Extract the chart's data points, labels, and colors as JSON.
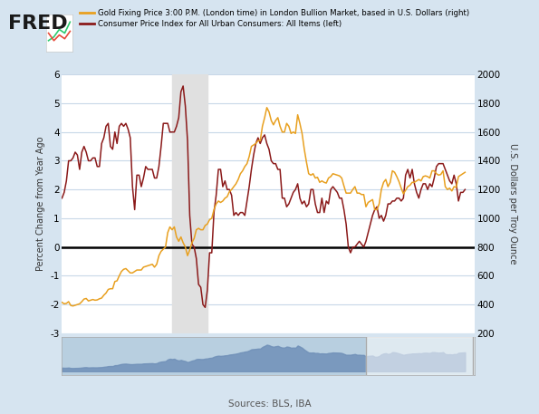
{
  "bg_color": "#d6e4f0",
  "plot_bg_color": "#ffffff",
  "header_bg": "#d6e4f0",
  "title_left": "FRED",
  "legend1": "Gold Fixing Price 3:00 P.M. (London time) in London Bullion Market, based in U.S. Dollars (right)",
  "legend2": "Consumer Price Index for All Urban Consumers: All Items (left)",
  "ylabel_left": "Percent Change from Year Ago",
  "ylabel_right": "U.S. Dollars per Troy Ounce",
  "source": "Sources: BLS, IBA",
  "recession_start": 2008.17,
  "recession_end": 2009.5,
  "ylim_left": [
    -3,
    6
  ],
  "ylim_right": [
    200,
    2000
  ],
  "yticks_left": [
    -3,
    -2,
    -1,
    0,
    1,
    2,
    3,
    4,
    5,
    6
  ],
  "yticks_right": [
    200,
    400,
    600,
    800,
    1000,
    1200,
    1400,
    1600,
    1800,
    2000
  ],
  "xtick_positions": [
    2006,
    2008,
    2010,
    2012,
    2014,
    2016,
    2018
  ],
  "xlim": [
    2004.0,
    2019.6
  ],
  "gold_color": "#e8a020",
  "cpi_color": "#8b1a1a",
  "zero_line_color": "#000000",
  "grid_color": "#c8d8e8",
  "recession_color": "#e0e0e0",
  "mini_fill_color": "#7090b8",
  "mini_bg_color": "#b8cfe0",
  "mini_highlight_start": 2015.5,
  "mini_highlight_end": 2019.6,
  "cpi_data_dates": [
    2004.0,
    2004.083,
    2004.167,
    2004.25,
    2004.333,
    2004.417,
    2004.5,
    2004.583,
    2004.667,
    2004.75,
    2004.833,
    2004.917,
    2005.0,
    2005.083,
    2005.167,
    2005.25,
    2005.333,
    2005.417,
    2005.5,
    2005.583,
    2005.667,
    2005.75,
    2005.833,
    2005.917,
    2006.0,
    2006.083,
    2006.167,
    2006.25,
    2006.333,
    2006.417,
    2006.5,
    2006.583,
    2006.667,
    2006.75,
    2006.833,
    2006.917,
    2007.0,
    2007.083,
    2007.167,
    2007.25,
    2007.333,
    2007.417,
    2007.5,
    2007.583,
    2007.667,
    2007.75,
    2007.833,
    2007.917,
    2008.0,
    2008.083,
    2008.167,
    2008.25,
    2008.333,
    2008.417,
    2008.5,
    2008.583,
    2008.667,
    2008.75,
    2008.833,
    2008.917,
    2009.0,
    2009.083,
    2009.167,
    2009.25,
    2009.333,
    2009.417,
    2009.5,
    2009.583,
    2009.667,
    2009.75,
    2009.833,
    2009.917,
    2010.0,
    2010.083,
    2010.167,
    2010.25,
    2010.333,
    2010.417,
    2010.5,
    2010.583,
    2010.667,
    2010.75,
    2010.833,
    2010.917,
    2011.0,
    2011.083,
    2011.167,
    2011.25,
    2011.333,
    2011.417,
    2011.5,
    2011.583,
    2011.667,
    2011.75,
    2011.833,
    2011.917,
    2012.0,
    2012.083,
    2012.167,
    2012.25,
    2012.333,
    2012.417,
    2012.5,
    2012.583,
    2012.667,
    2012.75,
    2012.833,
    2012.917,
    2013.0,
    2013.083,
    2013.167,
    2013.25,
    2013.333,
    2013.417,
    2013.5,
    2013.583,
    2013.667,
    2013.75,
    2013.833,
    2013.917,
    2014.0,
    2014.083,
    2014.167,
    2014.25,
    2014.333,
    2014.417,
    2014.5,
    2014.583,
    2014.667,
    2014.75,
    2014.833,
    2014.917,
    2015.0,
    2015.083,
    2015.167,
    2015.25,
    2015.333,
    2015.417,
    2015.5,
    2015.583,
    2015.667,
    2015.75,
    2015.833,
    2015.917,
    2016.0,
    2016.083,
    2016.167,
    2016.25,
    2016.333,
    2016.417,
    2016.5,
    2016.583,
    2016.667,
    2016.75,
    2016.833,
    2016.917,
    2017.0,
    2017.083,
    2017.167,
    2017.25,
    2017.333,
    2017.417,
    2017.5,
    2017.583,
    2017.667,
    2017.75,
    2017.833,
    2017.917,
    2018.0,
    2018.083,
    2018.167,
    2018.25,
    2018.333,
    2018.417,
    2018.5,
    2018.583,
    2018.667,
    2018.75,
    2018.833,
    2018.917,
    2019.0,
    2019.083,
    2019.167,
    2019.25
  ],
  "cpi_data_values": [
    1.7,
    1.9,
    2.3,
    3.0,
    3.0,
    3.1,
    3.3,
    3.2,
    2.7,
    3.3,
    3.5,
    3.3,
    3.0,
    3.0,
    3.1,
    3.1,
    2.8,
    2.8,
    3.6,
    3.8,
    4.2,
    4.3,
    3.5,
    3.4,
    4.0,
    3.6,
    4.2,
    4.3,
    4.2,
    4.3,
    4.1,
    3.8,
    2.1,
    1.3,
    2.5,
    2.5,
    2.1,
    2.4,
    2.8,
    2.7,
    2.7,
    2.7,
    2.4,
    2.4,
    2.8,
    3.5,
    4.3,
    4.3,
    4.3,
    4.0,
    4.0,
    4.0,
    4.2,
    4.5,
    5.4,
    5.6,
    4.9,
    3.7,
    1.1,
    0.1,
    0.0,
    -0.4,
    -1.3,
    -1.4,
    -2.0,
    -2.1,
    -1.5,
    -0.2,
    -0.2,
    1.2,
    1.8,
    2.7,
    2.7,
    2.1,
    2.3,
    2.0,
    2.0,
    1.8,
    1.1,
    1.2,
    1.1,
    1.2,
    1.2,
    1.1,
    1.6,
    2.1,
    2.7,
    3.2,
    3.6,
    3.8,
    3.6,
    3.8,
    3.9,
    3.6,
    3.4,
    3.0,
    2.9,
    2.9,
    2.7,
    2.7,
    1.7,
    1.7,
    1.4,
    1.5,
    1.7,
    1.9,
    2.0,
    2.2,
    1.7,
    1.5,
    1.6,
    1.4,
    1.5,
    2.0,
    2.0,
    1.5,
    1.2,
    1.2,
    1.7,
    1.2,
    1.6,
    1.5,
    2.0,
    2.1,
    2.0,
    1.9,
    1.7,
    1.7,
    1.3,
    0.8,
    0.0,
    -0.2,
    0.0,
    0.0,
    0.1,
    0.2,
    0.1,
    0.0,
    0.2,
    0.5,
    0.8,
    1.1,
    1.3,
    1.4,
    1.0,
    1.1,
    0.9,
    1.1,
    1.5,
    1.5,
    1.6,
    1.6,
    1.7,
    1.7,
    1.6,
    1.7,
    2.5,
    2.7,
    2.4,
    2.7,
    2.2,
    1.9,
    1.7,
    2.0,
    2.2,
    2.2,
    2.0,
    2.2,
    2.1,
    2.4,
    2.8,
    2.9,
    2.9,
    2.9,
    2.7,
    2.5,
    2.3,
    2.2,
    2.5,
    2.2,
    1.6,
    1.9,
    1.9,
    2.0
  ],
  "gold_data_dates": [
    2004.0,
    2004.083,
    2004.167,
    2004.25,
    2004.333,
    2004.417,
    2004.5,
    2004.583,
    2004.667,
    2004.75,
    2004.833,
    2004.917,
    2005.0,
    2005.083,
    2005.167,
    2005.25,
    2005.333,
    2005.417,
    2005.5,
    2005.583,
    2005.667,
    2005.75,
    2005.833,
    2005.917,
    2006.0,
    2006.083,
    2006.167,
    2006.25,
    2006.333,
    2006.417,
    2006.5,
    2006.583,
    2006.667,
    2006.75,
    2006.833,
    2006.917,
    2007.0,
    2007.083,
    2007.167,
    2007.25,
    2007.333,
    2007.417,
    2007.5,
    2007.583,
    2007.667,
    2007.75,
    2007.833,
    2007.917,
    2008.0,
    2008.083,
    2008.167,
    2008.25,
    2008.333,
    2008.417,
    2008.5,
    2008.583,
    2008.667,
    2008.75,
    2008.833,
    2008.917,
    2009.0,
    2009.083,
    2009.167,
    2009.25,
    2009.333,
    2009.417,
    2009.5,
    2009.583,
    2009.667,
    2009.75,
    2009.833,
    2009.917,
    2010.0,
    2010.083,
    2010.167,
    2010.25,
    2010.333,
    2010.417,
    2010.5,
    2010.583,
    2010.667,
    2010.75,
    2010.833,
    2010.917,
    2011.0,
    2011.083,
    2011.167,
    2011.25,
    2011.333,
    2011.417,
    2011.5,
    2011.583,
    2011.667,
    2011.75,
    2011.833,
    2011.917,
    2012.0,
    2012.083,
    2012.167,
    2012.25,
    2012.333,
    2012.417,
    2012.5,
    2012.583,
    2012.667,
    2012.75,
    2012.833,
    2012.917,
    2013.0,
    2013.083,
    2013.167,
    2013.25,
    2013.333,
    2013.417,
    2013.5,
    2013.583,
    2013.667,
    2013.75,
    2013.833,
    2013.917,
    2014.0,
    2014.083,
    2014.167,
    2014.25,
    2014.333,
    2014.417,
    2014.5,
    2014.583,
    2014.667,
    2014.75,
    2014.833,
    2014.917,
    2015.0,
    2015.083,
    2015.167,
    2015.25,
    2015.333,
    2015.417,
    2015.5,
    2015.583,
    2015.667,
    2015.75,
    2015.833,
    2015.917,
    2016.0,
    2016.083,
    2016.167,
    2016.25,
    2016.333,
    2016.417,
    2016.5,
    2016.583,
    2016.667,
    2016.75,
    2016.833,
    2016.917,
    2017.0,
    2017.083,
    2017.167,
    2017.25,
    2017.333,
    2017.417,
    2017.5,
    2017.583,
    2017.667,
    2017.75,
    2017.833,
    2017.917,
    2018.0,
    2018.083,
    2018.167,
    2018.25,
    2018.333,
    2018.417,
    2018.5,
    2018.583,
    2018.667,
    2018.75,
    2018.833,
    2018.917,
    2019.0,
    2019.083,
    2019.167,
    2019.25
  ],
  "gold_data_values": [
    415,
    405,
    408,
    420,
    393,
    390,
    395,
    400,
    405,
    420,
    438,
    442,
    425,
    430,
    435,
    430,
    432,
    440,
    445,
    465,
    480,
    505,
    510,
    510,
    560,
    565,
    600,
    630,
    645,
    650,
    635,
    620,
    620,
    630,
    640,
    640,
    640,
    660,
    665,
    670,
    675,
    680,
    660,
    680,
    740,
    770,
    785,
    800,
    900,
    940,
    920,
    940,
    870,
    840,
    870,
    830,
    800,
    740,
    780,
    830,
    860,
    920,
    930,
    920,
    920,
    950,
    960,
    990,
    1000,
    1060,
    1100,
    1120,
    1110,
    1120,
    1140,
    1150,
    1185,
    1200,
    1220,
    1240,
    1270,
    1310,
    1330,
    1360,
    1380,
    1430,
    1500,
    1510,
    1520,
    1540,
    1540,
    1640,
    1700,
    1770,
    1740,
    1680,
    1650,
    1680,
    1700,
    1640,
    1600,
    1600,
    1660,
    1640,
    1590,
    1600,
    1590,
    1720,
    1660,
    1590,
    1480,
    1390,
    1310,
    1300,
    1310,
    1280,
    1285,
    1250,
    1260,
    1250,
    1245,
    1280,
    1290,
    1310,
    1305,
    1300,
    1295,
    1280,
    1225,
    1175,
    1175,
    1175,
    1200,
    1220,
    1175,
    1175,
    1165,
    1165,
    1080,
    1110,
    1120,
    1130,
    1060,
    1060,
    1100,
    1200,
    1250,
    1270,
    1220,
    1250,
    1330,
    1320,
    1290,
    1255,
    1210,
    1170,
    1195,
    1220,
    1230,
    1250,
    1250,
    1260,
    1270,
    1260,
    1290,
    1295,
    1290,
    1280,
    1330,
    1330,
    1310,
    1300,
    1305,
    1330,
    1220,
    1200,
    1210,
    1190,
    1220,
    1215,
    1290,
    1300,
    1310,
    1320
  ]
}
